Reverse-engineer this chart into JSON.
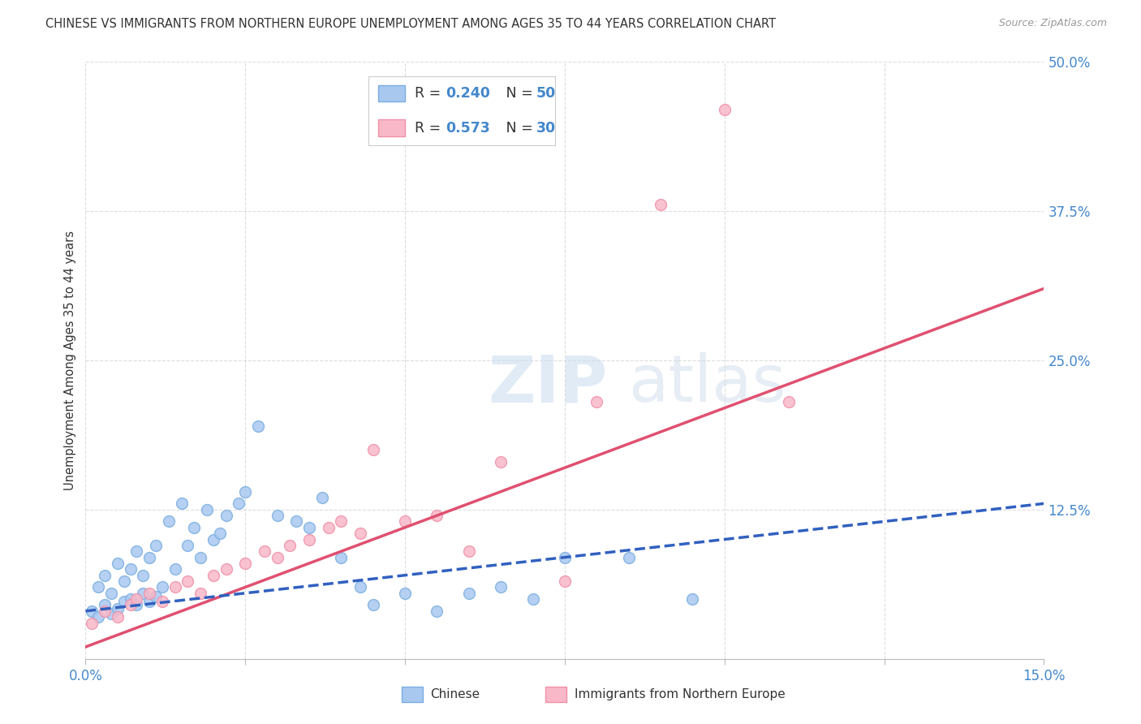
{
  "title": "CHINESE VS IMMIGRANTS FROM NORTHERN EUROPE UNEMPLOYMENT AMONG AGES 35 TO 44 YEARS CORRELATION CHART",
  "source": "Source: ZipAtlas.com",
  "ylabel": "Unemployment Among Ages 35 to 44 years",
  "xlim": [
    0.0,
    0.15
  ],
  "ylim": [
    0.0,
    0.5
  ],
  "xtick_positions": [
    0.0,
    0.025,
    0.05,
    0.075,
    0.1,
    0.125,
    0.15
  ],
  "xticklabels": [
    "0.0%",
    "",
    "",
    "",
    "",
    "",
    "15.0%"
  ],
  "ytick_positions": [
    0.0,
    0.125,
    0.25,
    0.375,
    0.5
  ],
  "yticklabels_right": [
    "",
    "12.5%",
    "25.0%",
    "37.5%",
    "50.0%"
  ],
  "chinese_fill_color": "#A8C8F0",
  "chinese_edge_color": "#7AAEE0",
  "northern_fill_color": "#F8B8C8",
  "northern_edge_color": "#F090A8",
  "chinese_line_color": "#3060C0",
  "northern_line_color": "#E05070",
  "axis_label_color": "#4488CC",
  "text_color": "#333333",
  "source_color": "#999999",
  "grid_color": "#DDDDDD",
  "R_chinese": 0.24,
  "N_chinese": 50,
  "R_northern": 0.573,
  "N_northern": 30,
  "chinese_scatter_x": [
    0.001,
    0.002,
    0.002,
    0.003,
    0.003,
    0.004,
    0.004,
    0.005,
    0.005,
    0.006,
    0.006,
    0.007,
    0.007,
    0.008,
    0.008,
    0.009,
    0.009,
    0.01,
    0.01,
    0.011,
    0.011,
    0.012,
    0.013,
    0.014,
    0.015,
    0.016,
    0.017,
    0.018,
    0.019,
    0.02,
    0.021,
    0.022,
    0.024,
    0.025,
    0.027,
    0.03,
    0.033,
    0.035,
    0.037,
    0.04,
    0.043,
    0.045,
    0.05,
    0.055,
    0.06,
    0.065,
    0.07,
    0.075,
    0.085,
    0.095
  ],
  "chinese_scatter_y": [
    0.04,
    0.035,
    0.06,
    0.045,
    0.07,
    0.038,
    0.055,
    0.042,
    0.08,
    0.048,
    0.065,
    0.05,
    0.075,
    0.045,
    0.09,
    0.055,
    0.07,
    0.048,
    0.085,
    0.052,
    0.095,
    0.06,
    0.115,
    0.075,
    0.13,
    0.095,
    0.11,
    0.085,
    0.125,
    0.1,
    0.105,
    0.12,
    0.13,
    0.14,
    0.195,
    0.12,
    0.115,
    0.11,
    0.135,
    0.085,
    0.06,
    0.045,
    0.055,
    0.04,
    0.055,
    0.06,
    0.05,
    0.085,
    0.085,
    0.05
  ],
  "northern_scatter_x": [
    0.001,
    0.003,
    0.005,
    0.007,
    0.008,
    0.01,
    0.012,
    0.014,
    0.016,
    0.018,
    0.02,
    0.022,
    0.025,
    0.028,
    0.03,
    0.032,
    0.035,
    0.038,
    0.04,
    0.043,
    0.045,
    0.05,
    0.055,
    0.06,
    0.065,
    0.075,
    0.08,
    0.09,
    0.1,
    0.11
  ],
  "northern_scatter_y": [
    0.03,
    0.04,
    0.035,
    0.045,
    0.05,
    0.055,
    0.048,
    0.06,
    0.065,
    0.055,
    0.07,
    0.075,
    0.08,
    0.09,
    0.085,
    0.095,
    0.1,
    0.11,
    0.115,
    0.105,
    0.175,
    0.115,
    0.12,
    0.09,
    0.165,
    0.065,
    0.215,
    0.38,
    0.46,
    0.215
  ],
  "chinese_trend_x0": 0.0,
  "chinese_trend_x1": 0.15,
  "chinese_trend_y0": 0.04,
  "chinese_trend_y1": 0.13,
  "northern_trend_x0": 0.0,
  "northern_trend_x1": 0.15,
  "northern_trend_y0": 0.01,
  "northern_trend_y1": 0.31,
  "background_color": "#FFFFFF"
}
